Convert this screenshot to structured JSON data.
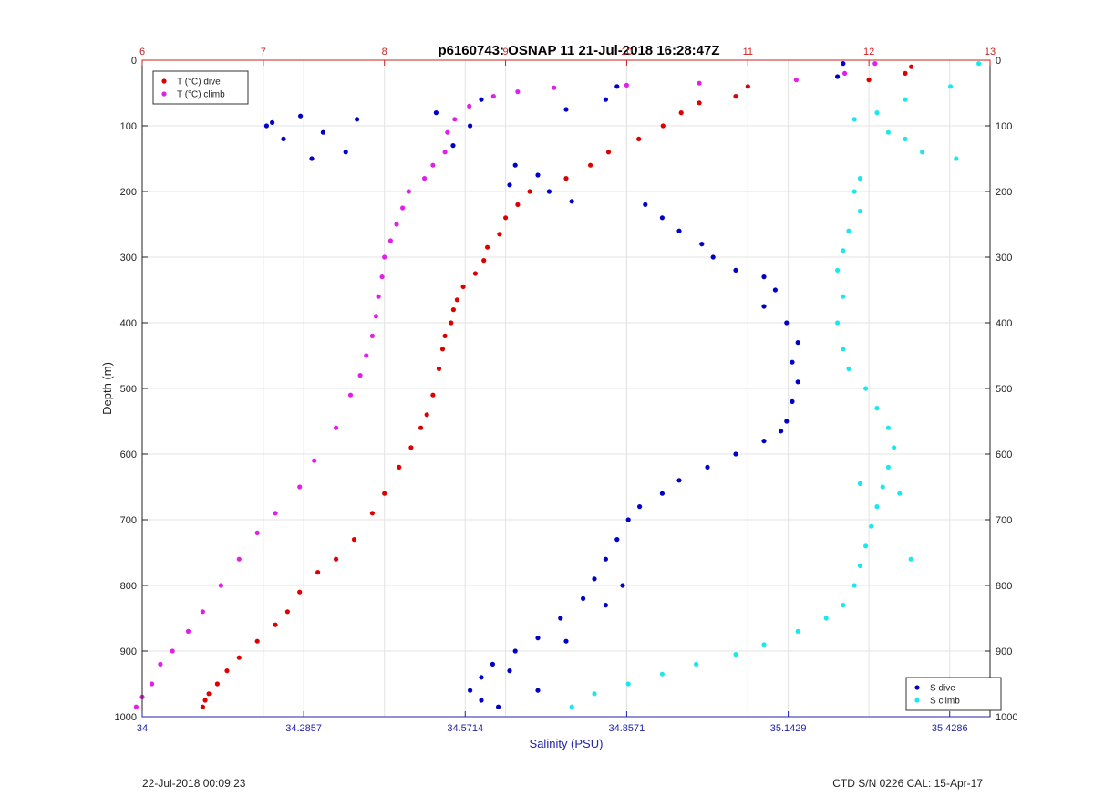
{
  "title": "p6160743: OSNAP 11 21-Jul-2018 16:28:47Z",
  "footer": {
    "timestamp": "22-Jul-2018 00:09:23",
    "ctd_info": "CTD S/N 0226  CAL: 15-Apr-17"
  },
  "colors": {
    "temp_dive": "#dd0000",
    "temp_climb": "#e020e8",
    "sal_dive": "#0000c8",
    "sal_climb": "#19e8ec",
    "temp_axis": "#cc2222",
    "sal_axis": "#2222aa"
  },
  "chart_data": {
    "type": "scatter",
    "title": "p6160743: OSNAP 11 21-Jul-2018 16:28:47Z",
    "ylabel": "Depth (m)",
    "xlabel_bottom": "Salinity (PSU)",
    "xlabel_top": "",
    "ylim": [
      1000,
      0
    ],
    "y_ticks": [
      "0",
      "100",
      "200",
      "300",
      "400",
      "500",
      "600",
      "700",
      "800",
      "900",
      "1000"
    ],
    "temp_axis": {
      "range": [
        6,
        13
      ],
      "ticks": [
        "6",
        "7",
        "8",
        "9",
        "10",
        "11",
        "12",
        "13"
      ]
    },
    "sal_axis": {
      "range": [
        34,
        35.5
      ],
      "ticks": [
        "34",
        "34.2857",
        "34.5714",
        "34.8571",
        "35.1429",
        "35.4286"
      ]
    },
    "grid": true,
    "legend_temp": {
      "position": "top-left",
      "entries": [
        "T (°C) dive",
        "T (°C) climb"
      ]
    },
    "legend_sal": {
      "position": "bottom-right",
      "entries": [
        "S dive",
        "S climb"
      ]
    },
    "series": [
      {
        "name": "T (°C) dive",
        "axis": "temp",
        "points": [
          [
            12.35,
            10
          ],
          [
            12.3,
            20
          ],
          [
            12.0,
            30
          ],
          [
            11.0,
            40
          ],
          [
            10.9,
            55
          ],
          [
            10.6,
            65
          ],
          [
            10.45,
            80
          ],
          [
            10.3,
            100
          ],
          [
            10.1,
            120
          ],
          [
            9.85,
            140
          ],
          [
            9.7,
            160
          ],
          [
            9.5,
            180
          ],
          [
            9.2,
            200
          ],
          [
            9.1,
            220
          ],
          [
            9.0,
            240
          ],
          [
            8.95,
            265
          ],
          [
            8.85,
            285
          ],
          [
            8.82,
            305
          ],
          [
            8.75,
            325
          ],
          [
            8.65,
            345
          ],
          [
            8.6,
            365
          ],
          [
            8.57,
            380
          ],
          [
            8.55,
            400
          ],
          [
            8.5,
            420
          ],
          [
            8.48,
            440
          ],
          [
            8.45,
            470
          ],
          [
            8.4,
            510
          ],
          [
            8.35,
            540
          ],
          [
            8.3,
            560
          ],
          [
            8.22,
            590
          ],
          [
            8.12,
            620
          ],
          [
            8.0,
            660
          ],
          [
            7.9,
            690
          ],
          [
            7.75,
            730
          ],
          [
            7.6,
            760
          ],
          [
            7.45,
            780
          ],
          [
            7.3,
            810
          ],
          [
            7.2,
            840
          ],
          [
            7.1,
            860
          ],
          [
            6.95,
            885
          ],
          [
            6.8,
            910
          ],
          [
            6.7,
            930
          ],
          [
            6.62,
            950
          ],
          [
            6.55,
            965
          ],
          [
            6.52,
            975
          ],
          [
            6.5,
            985
          ]
        ]
      },
      {
        "name": "T (°C) climb",
        "axis": "temp",
        "points": [
          [
            12.05,
            5
          ],
          [
            11.8,
            20
          ],
          [
            11.4,
            30
          ],
          [
            10.6,
            35
          ],
          [
            10.0,
            38
          ],
          [
            9.4,
            42
          ],
          [
            9.1,
            48
          ],
          [
            8.9,
            55
          ],
          [
            8.7,
            70
          ],
          [
            8.58,
            90
          ],
          [
            8.52,
            110
          ],
          [
            8.5,
            140
          ],
          [
            8.4,
            160
          ],
          [
            8.33,
            180
          ],
          [
            8.2,
            200
          ],
          [
            8.15,
            225
          ],
          [
            8.1,
            250
          ],
          [
            8.05,
            275
          ],
          [
            8.0,
            300
          ],
          [
            7.98,
            330
          ],
          [
            7.95,
            360
          ],
          [
            7.93,
            390
          ],
          [
            7.9,
            420
          ],
          [
            7.85,
            450
          ],
          [
            7.8,
            480
          ],
          [
            7.72,
            510
          ],
          [
            7.6,
            560
          ],
          [
            7.42,
            610
          ],
          [
            7.3,
            650
          ],
          [
            7.1,
            690
          ],
          [
            6.95,
            720
          ],
          [
            6.8,
            760
          ],
          [
            6.65,
            800
          ],
          [
            6.5,
            840
          ],
          [
            6.38,
            870
          ],
          [
            6.25,
            900
          ],
          [
            6.15,
            920
          ],
          [
            6.08,
            950
          ],
          [
            6.0,
            970
          ],
          [
            5.95,
            985
          ]
        ]
      },
      {
        "name": "S dive",
        "axis": "sal",
        "points": [
          [
            35.24,
            5
          ],
          [
            35.23,
            25
          ],
          [
            34.84,
            40
          ],
          [
            34.82,
            60
          ],
          [
            34.75,
            75
          ],
          [
            34.6,
            60
          ],
          [
            34.52,
            80
          ],
          [
            34.58,
            100
          ],
          [
            34.55,
            130
          ],
          [
            34.23,
            95
          ],
          [
            34.25,
            120
          ],
          [
            34.3,
            150
          ],
          [
            34.36,
            140
          ],
          [
            34.28,
            85
          ],
          [
            34.22,
            100
          ],
          [
            34.32,
            110
          ],
          [
            34.38,
            90
          ],
          [
            34.66,
            160
          ],
          [
            34.7,
            175
          ],
          [
            34.65,
            190
          ],
          [
            34.72,
            200
          ],
          [
            34.76,
            215
          ],
          [
            34.89,
            220
          ],
          [
            34.92,
            240
          ],
          [
            34.95,
            260
          ],
          [
            34.99,
            280
          ],
          [
            35.01,
            300
          ],
          [
            35.05,
            320
          ],
          [
            35.1,
            330
          ],
          [
            35.12,
            350
          ],
          [
            35.1,
            375
          ],
          [
            35.14,
            400
          ],
          [
            35.16,
            430
          ],
          [
            35.15,
            460
          ],
          [
            35.16,
            490
          ],
          [
            35.15,
            520
          ],
          [
            35.14,
            550
          ],
          [
            35.13,
            565
          ],
          [
            35.1,
            580
          ],
          [
            35.05,
            600
          ],
          [
            35.0,
            620
          ],
          [
            34.95,
            640
          ],
          [
            34.92,
            660
          ],
          [
            34.88,
            680
          ],
          [
            34.86,
            700
          ],
          [
            34.84,
            730
          ],
          [
            34.82,
            760
          ],
          [
            34.8,
            790
          ],
          [
            34.78,
            820
          ],
          [
            34.74,
            850
          ],
          [
            34.7,
            880
          ],
          [
            34.66,
            900
          ],
          [
            34.62,
            920
          ],
          [
            34.6,
            940
          ],
          [
            34.58,
            960
          ],
          [
            34.6,
            975
          ],
          [
            34.63,
            985
          ],
          [
            34.7,
            960
          ],
          [
            34.65,
            930
          ],
          [
            34.75,
            885
          ],
          [
            34.82,
            830
          ],
          [
            34.85,
            800
          ]
        ]
      },
      {
        "name": "S climb",
        "axis": "sal",
        "points": [
          [
            35.48,
            5
          ],
          [
            35.43,
            40
          ],
          [
            35.35,
            60
          ],
          [
            35.3,
            80
          ],
          [
            35.26,
            90
          ],
          [
            35.32,
            110
          ],
          [
            35.35,
            120
          ],
          [
            35.38,
            140
          ],
          [
            35.44,
            150
          ],
          [
            35.27,
            180
          ],
          [
            35.26,
            200
          ],
          [
            35.27,
            230
          ],
          [
            35.25,
            260
          ],
          [
            35.24,
            290
          ],
          [
            35.23,
            320
          ],
          [
            35.24,
            360
          ],
          [
            35.23,
            400
          ],
          [
            35.24,
            440
          ],
          [
            35.25,
            470
          ],
          [
            35.28,
            500
          ],
          [
            35.3,
            530
          ],
          [
            35.32,
            560
          ],
          [
            35.33,
            590
          ],
          [
            35.32,
            620
          ],
          [
            35.31,
            650
          ],
          [
            35.3,
            680
          ],
          [
            35.29,
            710
          ],
          [
            35.28,
            740
          ],
          [
            35.27,
            770
          ],
          [
            35.26,
            800
          ],
          [
            35.24,
            830
          ],
          [
            35.21,
            850
          ],
          [
            35.16,
            870
          ],
          [
            35.1,
            890
          ],
          [
            35.05,
            905
          ],
          [
            34.98,
            920
          ],
          [
            34.92,
            935
          ],
          [
            34.86,
            950
          ],
          [
            34.8,
            965
          ],
          [
            34.76,
            985
          ],
          [
            35.34,
            660
          ],
          [
            35.27,
            645
          ],
          [
            35.36,
            760
          ]
        ]
      }
    ]
  }
}
